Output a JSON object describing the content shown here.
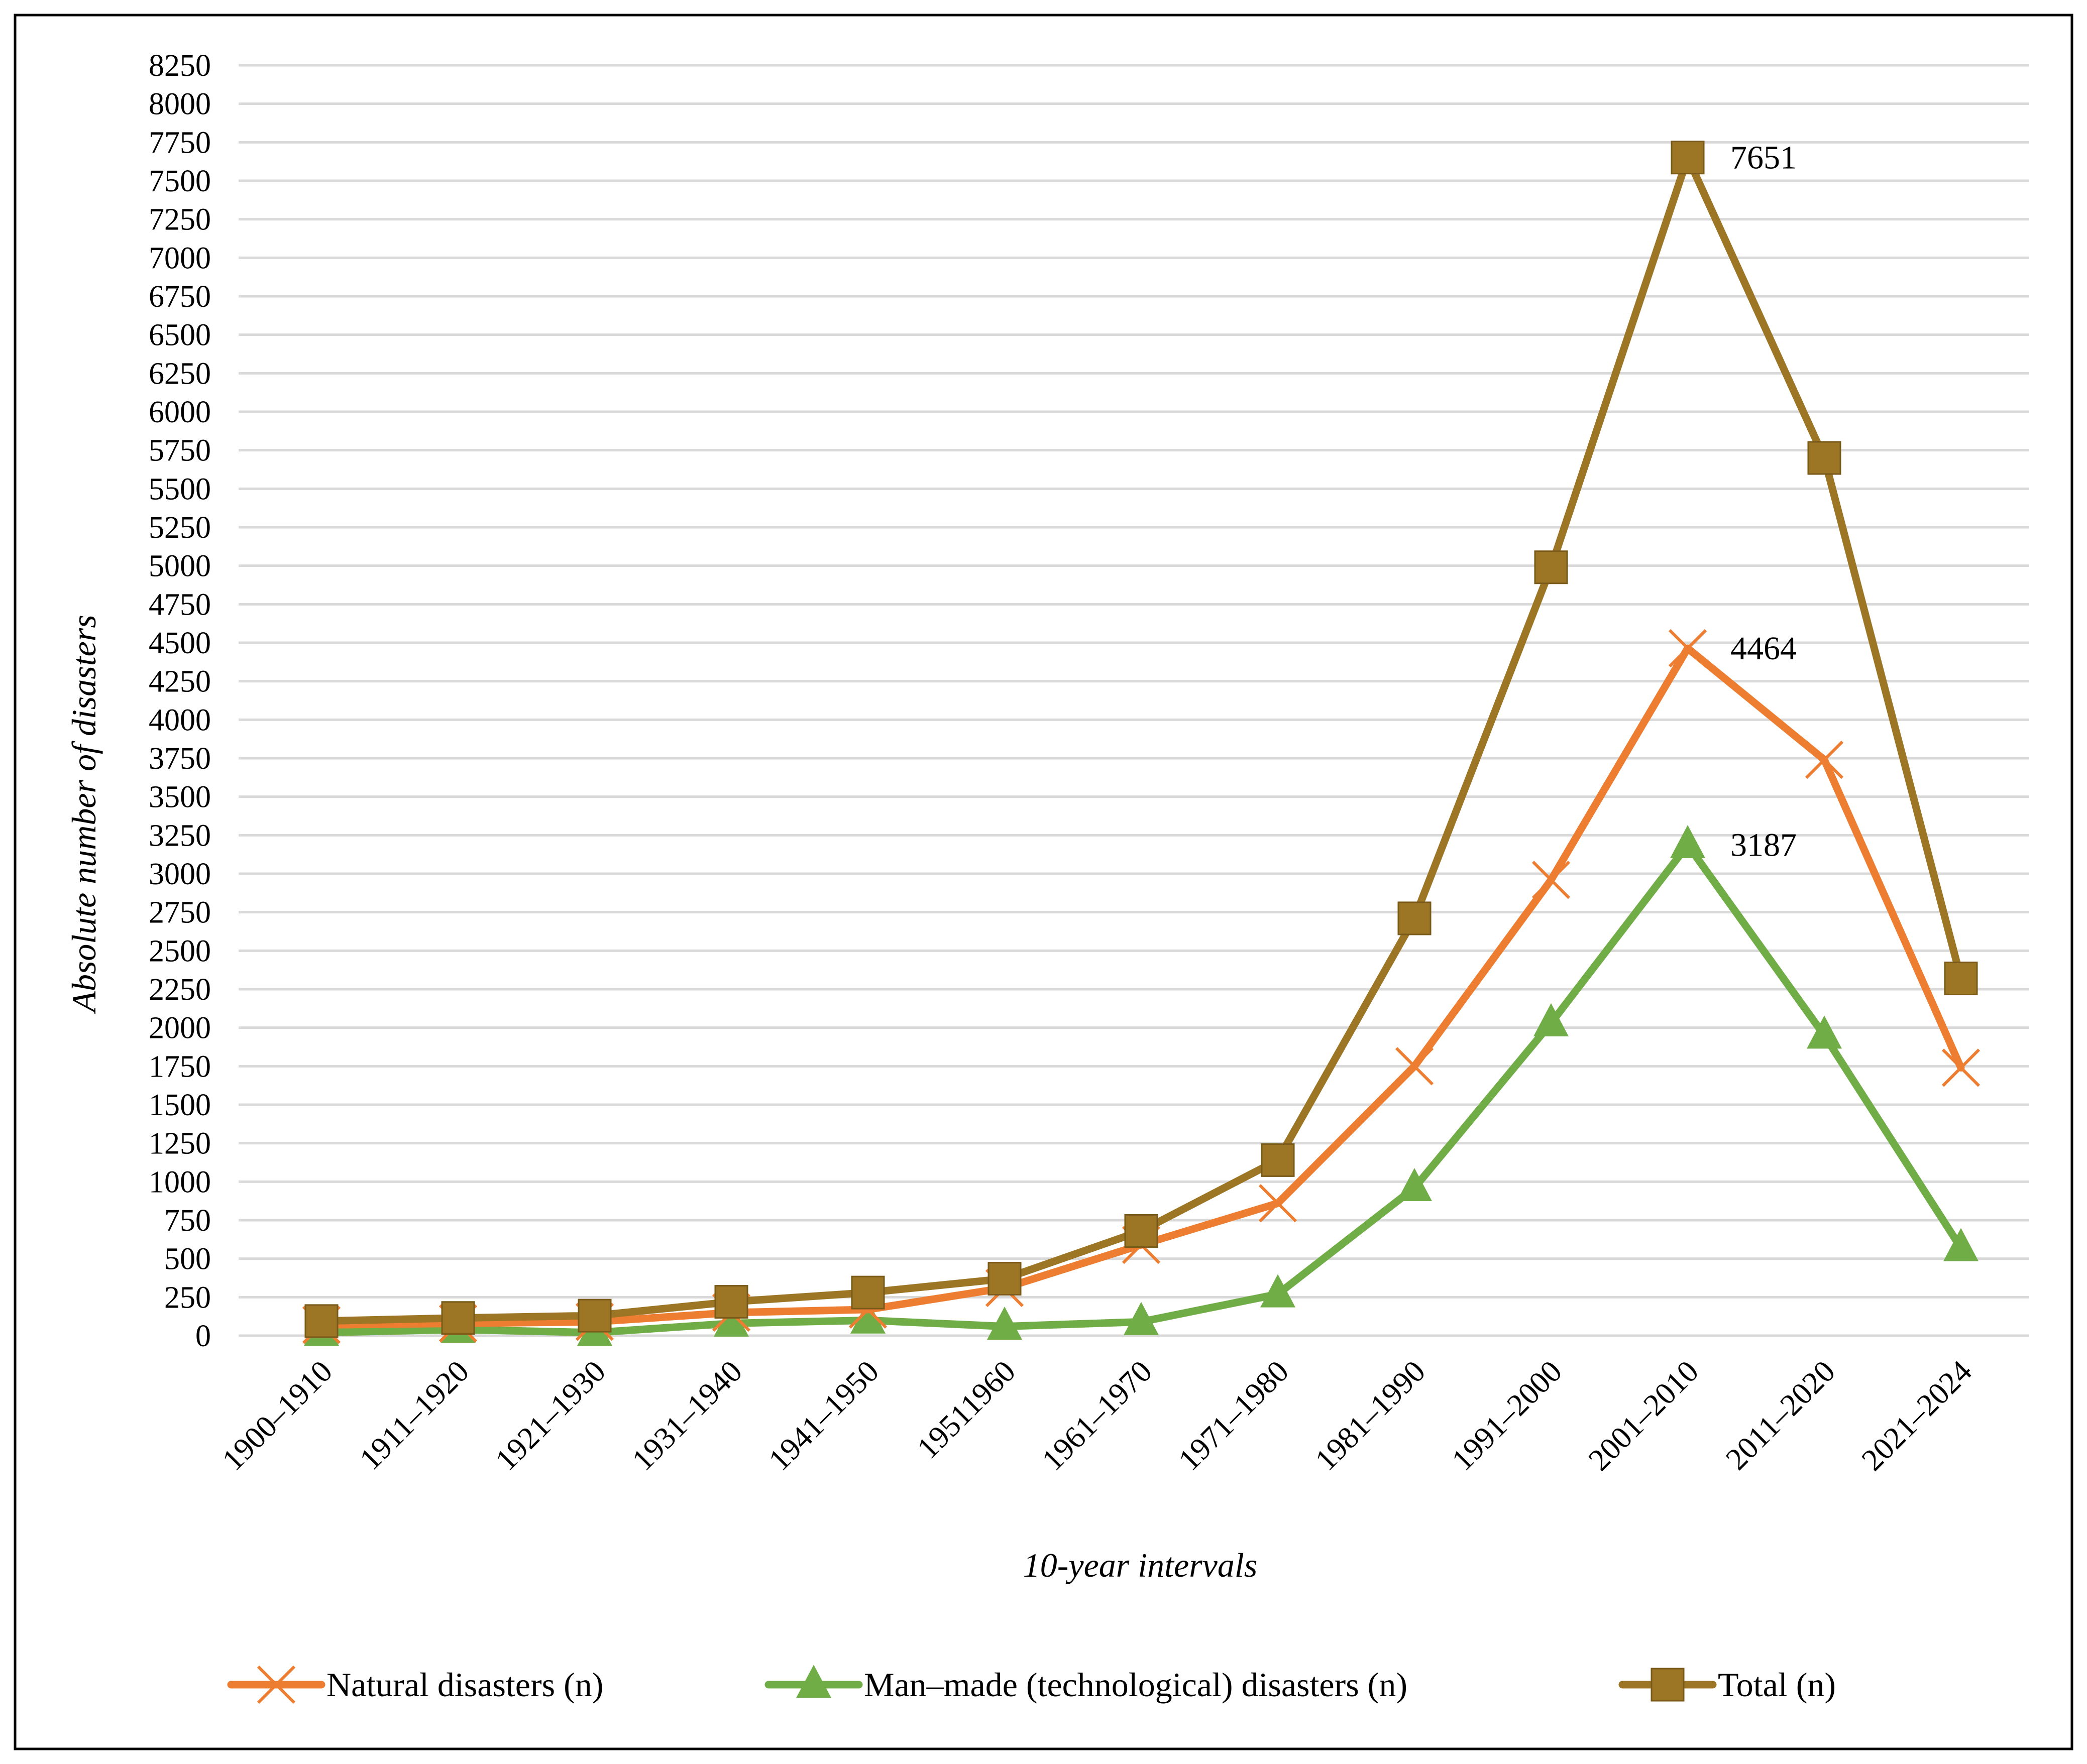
{
  "chart_data": {
    "type": "line",
    "title": "",
    "xlabel": "10-year intervals",
    "ylabel": "Absolute number of disasters",
    "ylim": [
      0,
      8250
    ],
    "ytick_step": 250,
    "grid": true,
    "legend_position": "bottom",
    "categories": [
      "1900–1910",
      "1911–1920",
      "1921–1930",
      "1931–1940",
      "1941–1950",
      "19511960",
      "1961–1970",
      "1971–1980",
      "1981–1990",
      "1991–2000",
      "2001–2010",
      "2011–2020",
      "2021–2024"
    ],
    "series": [
      {
        "name": "Natural disasters (n)",
        "marker": "x",
        "color": "#ED7D31",
        "values": [
          70,
          80,
          90,
          150,
          170,
          310,
          590,
          860,
          1750,
          2960,
          4464,
          3740,
          1740
        ]
      },
      {
        "name": "Man–made (technological) disasters (n)",
        "marker": "triangle",
        "color": "#70AD47",
        "values": [
          20,
          40,
          20,
          80,
          100,
          60,
          90,
          270,
          960,
          2030,
          3187,
          1950,
          570
        ]
      },
      {
        "name": "Total (n)",
        "marker": "square",
        "color": "#9C7525",
        "values": [
          95,
          115,
          130,
          220,
          280,
          370,
          680,
          1140,
          2710,
          4990,
          7651,
          5700,
          2320
        ]
      }
    ],
    "annotations": [
      {
        "series": 2,
        "index": 10,
        "text": "7651"
      },
      {
        "series": 0,
        "index": 10,
        "text": "4464"
      },
      {
        "series": 1,
        "index": 10,
        "text": "3187"
      }
    ]
  }
}
